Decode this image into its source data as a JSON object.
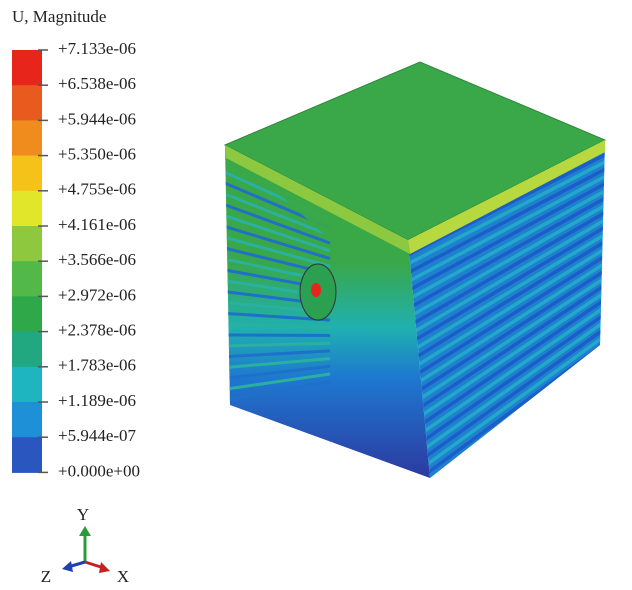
{
  "legend": {
    "title": "U, Magnitude",
    "labels": [
      "+7.133e-06",
      "+6.538e-06",
      "+5.944e-06",
      "+5.350e-06",
      "+4.755e-06",
      "+4.161e-06",
      "+3.566e-06",
      "+2.972e-06",
      "+2.378e-06",
      "+1.783e-06",
      "+1.189e-06",
      "+5.944e-07",
      "+0.000e+00"
    ]
  },
  "triad": {
    "y": "Y",
    "z": "Z",
    "x": "X"
  }
}
